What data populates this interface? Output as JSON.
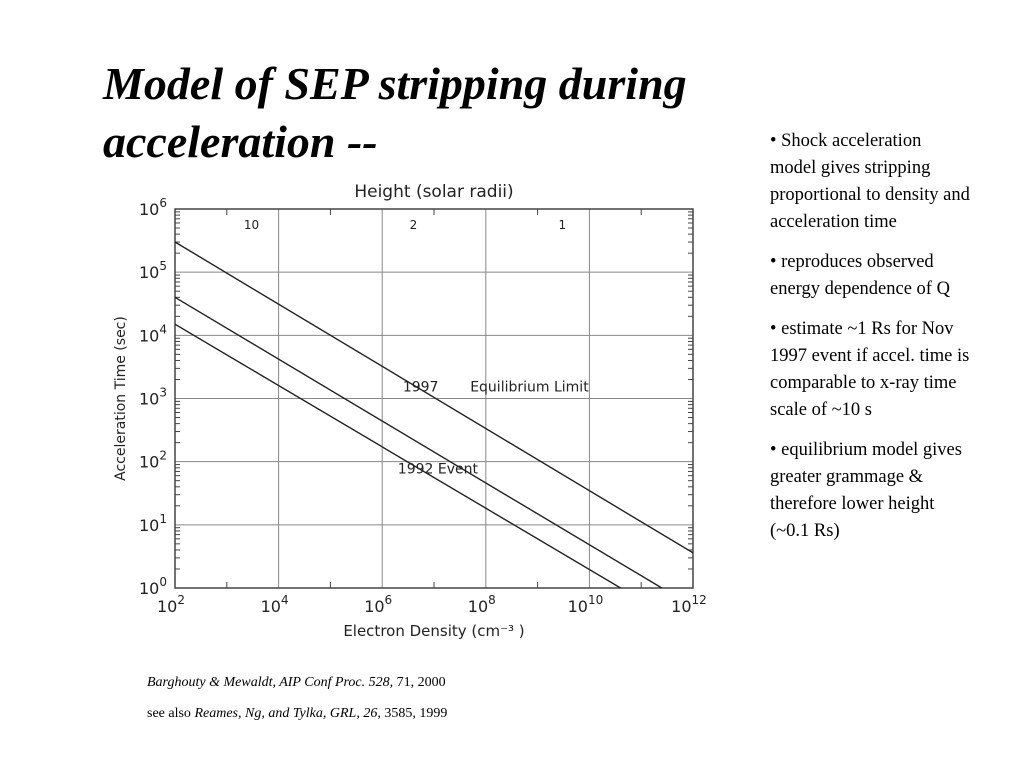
{
  "title": "Model of SEP stripping during acceleration --",
  "bullets": [
    "• Shock acceleration model gives stripping proportional to density and acceleration time",
    "• reproduces observed energy dependence of Q",
    "• estimate ~1 Rs for Nov 1997 event if accel. time is comparable to x-ray time scale of ~10 s",
    "• equilibrium model gives greater grammage & therefore lower height (~0.1 Rs)"
  ],
  "citations": {
    "line1": {
      "authors": "Barghouty & Mewaldt, AIP Conf Proc. 528,",
      "rest": " 71, 2000"
    },
    "line2": {
      "prefix": "see also ",
      "authors": "Reames, Ng, and Tylka, GRL, 26,",
      "rest": " 3585, 1999"
    }
  },
  "chart_data": {
    "type": "line",
    "xlabel": "Electron Density (cm⁻³ )",
    "ylabel": "Acceleration Time (sec)",
    "top_axis_label": "Height (solar radii)",
    "x_scale": "log",
    "y_scale": "log",
    "xlim": [
      100,
      1000000000000
    ],
    "ylim": [
      1,
      1000000
    ],
    "x_ticks": [
      {
        "base": "10",
        "exp": "2",
        "value": 100
      },
      {
        "base": "10",
        "exp": "4",
        "value": 10000
      },
      {
        "base": "10",
        "exp": "6",
        "value": 1000000
      },
      {
        "base": "10",
        "exp": "8",
        "value": 100000000
      },
      {
        "base": "10",
        "exp": "10",
        "value": 10000000000
      },
      {
        "base": "10",
        "exp": "12",
        "value": 1000000000000
      }
    ],
    "y_ticks": [
      {
        "base": "10",
        "exp": "0",
        "value": 1
      },
      {
        "base": "10",
        "exp": "1",
        "value": 10
      },
      {
        "base": "10",
        "exp": "2",
        "value": 100
      },
      {
        "base": "10",
        "exp": "3",
        "value": 1000
      },
      {
        "base": "10",
        "exp": "4",
        "value": 10000
      },
      {
        "base": "10",
        "exp": "5",
        "value": 100000
      },
      {
        "base": "10",
        "exp": "6",
        "value": 1000000
      }
    ],
    "top_ticks": [
      {
        "label": "10",
        "density": 3000
      },
      {
        "label": "2",
        "density": 4000000
      },
      {
        "label": "1",
        "density": 3000000000
      }
    ],
    "grid": true,
    "series": [
      {
        "name": "Equilibrium Limit",
        "x": [
          100,
          2500000000000
        ],
        "y": [
          300000,
          2.3
        ]
      },
      {
        "name": "1997",
        "x": [
          100,
          250000000000
        ],
        "y": [
          40000,
          1
        ]
      },
      {
        "name": "1992 Event",
        "x": [
          100,
          40000000000
        ],
        "y": [
          15000,
          1
        ]
      }
    ],
    "annotations": [
      {
        "text": "Equilibrium Limit",
        "x": 50000000,
        "y": 1300
      },
      {
        "text": "1997",
        "x": 2500000,
        "y": 1300
      },
      {
        "text": "1992 Event",
        "x": 2000000,
        "y": 65
      }
    ]
  }
}
